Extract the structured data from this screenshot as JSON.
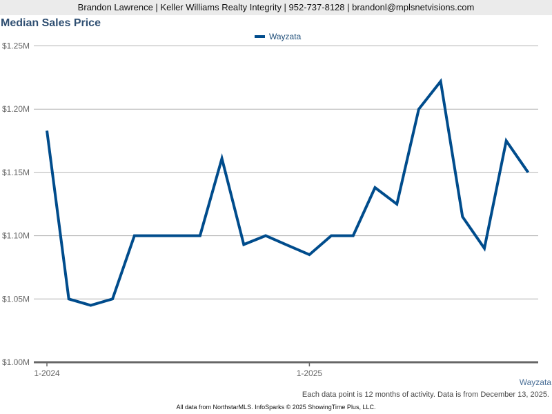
{
  "header": {
    "contact_line": "Brandon Lawrence | Keller Williams Realty Integrity | 952-737-8128 | brandonl@mplsnetvisions.com"
  },
  "chart": {
    "title": "Median Sales Price",
    "legend_label": "Wayzata",
    "series_color": "#004c8c",
    "y_ticks": [
      "$1.25M",
      "$1.20M",
      "$1.15M",
      "$1.10M",
      "$1.05M",
      "$1.00M"
    ],
    "x_ticks": [
      "1-2024",
      "1-2025"
    ],
    "area_label": "Wayzata",
    "note": "Each data point is 12 months of activity. Data is from December 13, 2025."
  },
  "footer": {
    "text": "All data from NorthstarMLS. InfoSparks © 2025 ShowingTime Plus, LLC."
  },
  "chart_data": {
    "type": "line",
    "title": "Median Sales Price",
    "xlabel": "",
    "ylabel": "",
    "ylim": [
      1000000,
      1250000
    ],
    "legend_position": "top",
    "grid": true,
    "x": [
      "1-2024",
      "2-2024",
      "3-2024",
      "4-2024",
      "5-2024",
      "6-2024",
      "7-2024",
      "8-2024",
      "9-2024",
      "10-2024",
      "11-2024",
      "12-2024",
      "1-2025",
      "2-2025",
      "3-2025",
      "4-2025",
      "5-2025",
      "6-2025",
      "7-2025",
      "8-2025",
      "9-2025",
      "10-2025",
      "11-2025"
    ],
    "x_tick_labels": [
      "1-2024",
      "1-2025"
    ],
    "y_tick_labels": [
      "$1.00M",
      "$1.05M",
      "$1.10M",
      "$1.15M",
      "$1.20M",
      "$1.25M"
    ],
    "series": [
      {
        "name": "Wayzata",
        "values": [
          1183000,
          1050000,
          1045000,
          1050000,
          1100000,
          1100000,
          1100000,
          1100000,
          1161000,
          1093000,
          1100000,
          1092500,
          1085000,
          1100000,
          1100000,
          1138000,
          1125000,
          1200000,
          1222000,
          1115000,
          1090000,
          1175000,
          1150000
        ]
      }
    ]
  }
}
